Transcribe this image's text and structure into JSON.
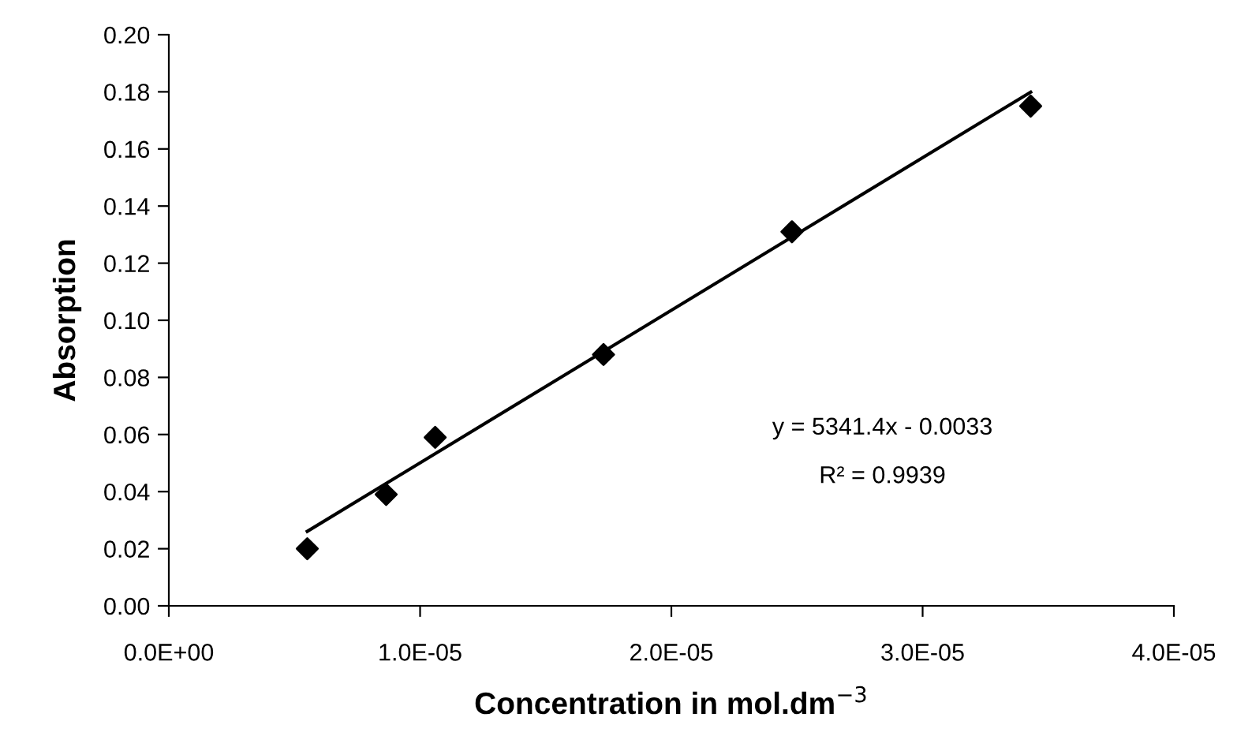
{
  "chart_data": {
    "type": "scatter",
    "xlabel": "Concentration in mol.dm$^{−3}$",
    "ylabel": "Absorption",
    "series": [
      {
        "color": "#000000",
        "marker": "diamond",
        "x": [
          5.51e-06,
          8.65e-06,
          1.06e-05,
          1.73e-05,
          2.48e-05,
          3.43e-05
        ],
        "values": [
          0.02,
          0.039,
          0.059,
          0.088,
          0.131,
          0.175
        ]
      },
      {
        "type": "line",
        "color": "#000000",
        "marker": "none",
        "line_style": "solid",
        "x": [
          5.51e-06,
          3.43e-05
        ],
        "values": [
          0.0261,
          0.1799
        ]
      }
    ],
    "xlim": [
      0,
      4e-05
    ],
    "xticks": [
      {
        "value": 0,
        "label": "0.0E+00"
      },
      {
        "value": 1e-05,
        "label": "1.0E-05"
      },
      {
        "value": 2e-05,
        "label": "2.0E-05"
      },
      {
        "value": 3e-05,
        "label": "3.0E-05"
      },
      {
        "value": 4e-05,
        "label": "4.0E-05"
      }
    ],
    "ylim": [
      0,
      0.2
    ],
    "yticks": [
      {
        "value": 0,
        "label": "0.00"
      },
      {
        "value": 0.02,
        "label": "0.02"
      },
      {
        "value": 0.04,
        "label": "0.04"
      },
      {
        "value": 0.06,
        "label": "0.06"
      },
      {
        "value": 0.08,
        "label": "0.08"
      },
      {
        "value": 0.1,
        "label": "0.10"
      },
      {
        "value": 0.12,
        "label": "0.12"
      },
      {
        "value": 0.14,
        "label": "0.14"
      },
      {
        "value": 0.16,
        "label": "0.16"
      },
      {
        "value": 0.18,
        "label": "0.18"
      },
      {
        "value": 0.2,
        "label": "0.20"
      }
    ],
    "annotations": [
      "y = 5341.4x - 0.0033",
      "R² = 0.9939"
    ],
    "grid": false,
    "legend": false
  }
}
